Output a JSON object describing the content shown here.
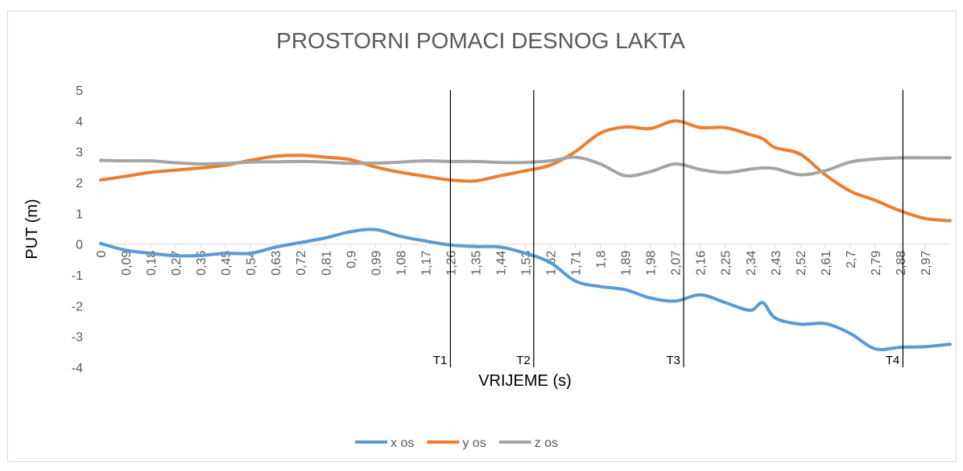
{
  "chart_data": {
    "type": "line",
    "title": "PROSTORNI POMACI DESNOG LAKTA",
    "x_label": "VRIJEME (s)",
    "y_label": "PUT (m)",
    "x": [
      0,
      0.09,
      0.18,
      0.27,
      0.36,
      0.45,
      0.54,
      0.63,
      0.72,
      0.81,
      0.9,
      0.99,
      1.08,
      1.17,
      1.26,
      1.35,
      1.44,
      1.53,
      1.62,
      1.71,
      1.8,
      1.89,
      1.98,
      2.07,
      2.16,
      2.25,
      2.34,
      2.385,
      2.43,
      2.52,
      2.61,
      2.7,
      2.79,
      2.88,
      2.97,
      3.06
    ],
    "series": [
      {
        "name": "x os",
        "color": "#5b9bd5",
        "values": [
          0.02,
          -0.2,
          -0.3,
          -0.38,
          -0.37,
          -0.3,
          -0.3,
          -0.1,
          0.05,
          0.2,
          0.4,
          0.47,
          0.25,
          0.1,
          -0.03,
          -0.08,
          -0.1,
          -0.3,
          -0.6,
          -1.2,
          -1.38,
          -1.48,
          -1.75,
          -1.85,
          -1.65,
          -1.9,
          -2.15,
          -1.9,
          -2.4,
          -2.6,
          -2.58,
          -2.9,
          -3.4,
          -3.35,
          -3.33,
          -3.25
        ]
      },
      {
        "name": "y os",
        "color": "#ed7d31",
        "values": [
          2.08,
          2.2,
          2.33,
          2.4,
          2.47,
          2.56,
          2.72,
          2.85,
          2.88,
          2.82,
          2.74,
          2.5,
          2.33,
          2.2,
          2.08,
          2.05,
          2.22,
          2.38,
          2.56,
          3.0,
          3.6,
          3.8,
          3.75,
          4.0,
          3.78,
          3.78,
          3.55,
          3.42,
          3.13,
          2.92,
          2.25,
          1.72,
          1.42,
          1.08,
          0.83,
          0.76
        ]
      },
      {
        "name": "z os",
        "color": "#a5a5a5",
        "values": [
          2.72,
          2.7,
          2.7,
          2.64,
          2.6,
          2.62,
          2.66,
          2.67,
          2.68,
          2.66,
          2.62,
          2.63,
          2.66,
          2.7,
          2.68,
          2.68,
          2.65,
          2.65,
          2.7,
          2.82,
          2.6,
          2.22,
          2.35,
          2.6,
          2.42,
          2.32,
          2.43,
          2.47,
          2.45,
          2.25,
          2.38,
          2.66,
          2.76,
          2.8,
          2.8,
          2.8
        ]
      }
    ],
    "xlim": [
      0,
      3.06
    ],
    "xticks": [
      0,
      {
        "value": 0.09,
        "label": "0,09"
      },
      {
        "value": 0.18,
        "label": "0,18"
      },
      {
        "value": 0.27,
        "label": "0,27"
      },
      {
        "value": 0.36,
        "label": "0,36"
      },
      {
        "value": 0.45,
        "label": "0,45"
      },
      {
        "value": 0.54,
        "label": "0,54"
      },
      {
        "value": 0.63,
        "label": "0,63"
      },
      {
        "value": 0.72,
        "label": "0,72"
      },
      {
        "value": 0.81,
        "label": "0,81"
      },
      {
        "value": 0.9,
        "label": "0,9"
      },
      {
        "value": 0.99,
        "label": "0,99"
      },
      {
        "value": 1.08,
        "label": "1,08"
      },
      {
        "value": 1.17,
        "label": "1,17"
      },
      {
        "value": 1.26,
        "label": "1,26"
      },
      {
        "value": 1.35,
        "label": "1,35"
      },
      {
        "value": 1.44,
        "label": "1,44"
      },
      {
        "value": 1.53,
        "label": "1,53"
      },
      {
        "value": 1.62,
        "label": "1,62"
      },
      {
        "value": 1.71,
        "label": "1,71"
      },
      {
        "value": 1.8,
        "label": "1,8"
      },
      {
        "value": 1.89,
        "label": "1,89"
      },
      {
        "value": 1.98,
        "label": "1,98"
      },
      {
        "value": 2.07,
        "label": "2,07"
      },
      {
        "value": 2.16,
        "label": "2,16"
      },
      {
        "value": 2.25,
        "label": "2,25"
      },
      {
        "value": 2.34,
        "label": "2,34"
      },
      {
        "value": 2.43,
        "label": "2,43"
      },
      {
        "value": 2.52,
        "label": "2,52"
      },
      {
        "value": 2.61,
        "label": "2,61"
      },
      {
        "value": 2.7,
        "label": "2,7"
      },
      {
        "value": 2.79,
        "label": "2,79"
      },
      {
        "value": 2.88,
        "label": "2,88"
      },
      {
        "value": 2.97,
        "label": "2,97"
      }
    ],
    "ylim": [
      -4,
      5
    ],
    "yticks": [
      -4,
      -3,
      -2,
      -1,
      0,
      1,
      2,
      3,
      4,
      5
    ],
    "grid": false,
    "legend": "bottom",
    "markers": [
      {
        "label": "T1",
        "x": 1.26
      },
      {
        "label": "T2",
        "x": 1.56
      },
      {
        "label": "T3",
        "x": 2.1
      },
      {
        "label": "T4",
        "x": 2.89
      }
    ]
  }
}
